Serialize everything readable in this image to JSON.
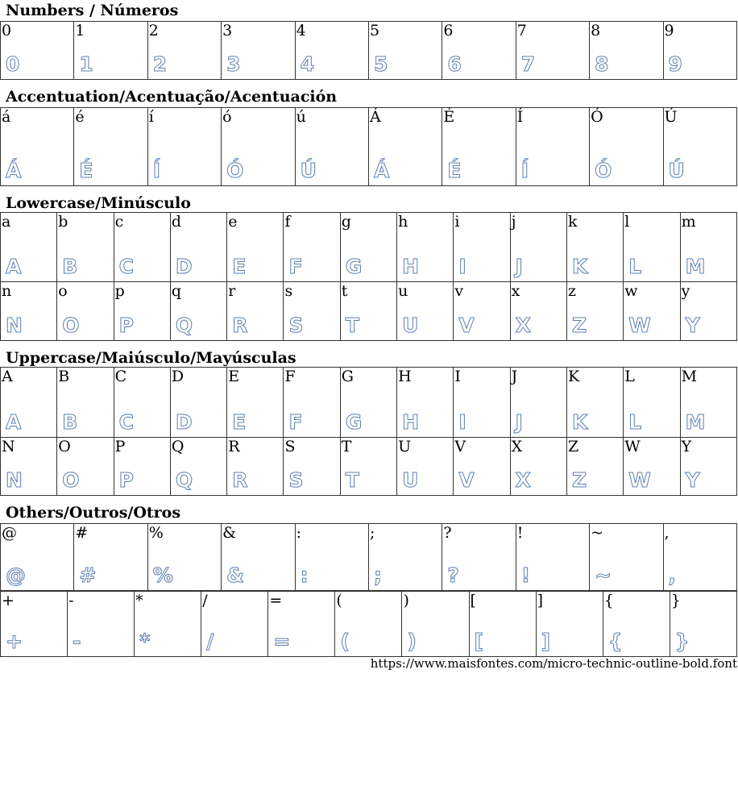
{
  "accent_color": "#5b7fb0",
  "sections": [
    {
      "title": "Numbers / Números",
      "rows": [
        [
          "0",
          "1",
          "2",
          "3",
          "4",
          "5",
          "6",
          "7",
          "8",
          "9"
        ]
      ],
      "height": [
        71
      ]
    },
    {
      "title": "Accentuation/Acentuação/Acentuación",
      "rows": [
        [
          "á",
          "é",
          "í",
          "ó",
          "ú",
          "Á",
          "É",
          "Í",
          "Ó",
          "Ú"
        ]
      ],
      "height": [
        96
      ]
    },
    {
      "title": "Lowercase/Minúsculo",
      "rows": [
        [
          "a",
          "b",
          "c",
          "d",
          "e",
          "f",
          "g",
          "h",
          "i",
          "j",
          "k",
          "l",
          "m"
        ],
        [
          "n",
          "o",
          "p",
          "q",
          "r",
          "s",
          "t",
          "u",
          "v",
          "x",
          "z",
          "w",
          "y"
        ]
      ],
      "height": [
        85,
        72
      ]
    },
    {
      "title": "Uppercase/Maiúsculo/Mayúsculas",
      "rows": [
        [
          "A",
          "B",
          "C",
          "D",
          "E",
          "F",
          "G",
          "H",
          "I",
          "J",
          "K",
          "L",
          "M"
        ],
        [
          "N",
          "O",
          "P",
          "Q",
          "R",
          "S",
          "T",
          "U",
          "V",
          "X",
          "Z",
          "W",
          "Y"
        ]
      ],
      "height": [
        86,
        71
      ]
    },
    {
      "title": "Others/Outros/Otros",
      "rows": [
        [
          "@",
          "#",
          "%",
          "&",
          ":",
          ";",
          "?",
          "!",
          "~",
          ","
        ],
        [
          "+",
          "-",
          "*",
          "/",
          "=",
          "(",
          ")",
          "[",
          "]",
          "{",
          "}"
        ]
      ],
      "height": [
        82,
        80
      ],
      "split": true
    }
  ],
  "footer": {
    "url": "https://www.maisfontes.com/micro-technic-outline-bold.font"
  }
}
